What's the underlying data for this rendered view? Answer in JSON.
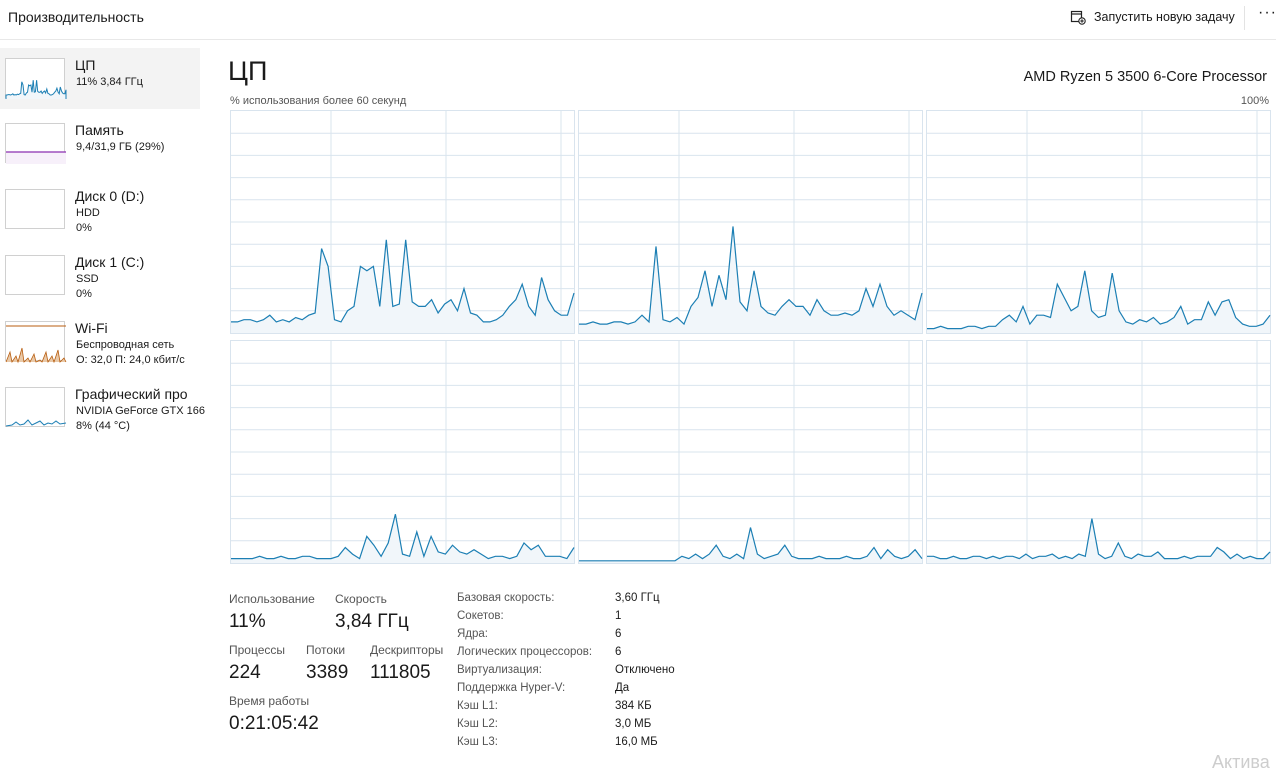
{
  "header": {
    "title": "Производительность",
    "run_task_label": "Запустить новую задачу",
    "more_label": "···"
  },
  "sidebar": {
    "items": [
      {
        "name": "ЦП",
        "line1": "11% 3,84 ГГц",
        "line2": ""
      },
      {
        "name": "Память",
        "line1": "9,4/31,9 ГБ (29%)",
        "line2": ""
      },
      {
        "name": "Диск 0 (D:)",
        "line1": "HDD",
        "line2": "0%"
      },
      {
        "name": "Диск 1 (C:)",
        "line1": "SSD",
        "line2": "0%"
      },
      {
        "name": "Wi-Fi",
        "line1": "Беспроводная сеть",
        "line2": "О: 32,0 П: 24,0 кбит/с"
      },
      {
        "name": "Графический про",
        "line1": "NVIDIA GeForce GTX 166",
        "line2": "8% (44 °C)"
      }
    ]
  },
  "cpu": {
    "title": "ЦП",
    "model": "AMD Ryzen 5 3500 6-Core Processor",
    "graph_caption": "% использования более 60 секунд",
    "graph_max": "100%",
    "cores": [
      [
        5,
        5,
        6,
        6,
        5,
        6,
        8,
        5,
        6,
        5,
        7,
        6,
        8,
        9,
        38,
        30,
        6,
        5,
        10,
        12,
        30,
        28,
        30,
        12,
        42,
        12,
        13,
        42,
        14,
        12,
        12,
        15,
        9,
        13,
        15,
        10,
        20,
        9,
        8,
        5,
        5,
        6,
        8,
        12,
        15,
        22,
        12,
        8,
        25,
        15,
        10,
        8,
        8,
        18
      ],
      [
        4,
        4,
        5,
        4,
        4,
        5,
        5,
        4,
        5,
        8,
        5,
        39,
        6,
        5,
        7,
        4,
        12,
        16,
        28,
        12,
        26,
        15,
        48,
        14,
        10,
        28,
        12,
        9,
        8,
        12,
        15,
        12,
        12,
        8,
        15,
        10,
        8,
        8,
        9,
        8,
        10,
        20,
        12,
        22,
        12,
        8,
        10,
        8,
        6,
        18
      ],
      [
        2,
        2,
        3,
        2,
        2,
        2,
        3,
        3,
        2,
        3,
        3,
        6,
        8,
        5,
        12,
        4,
        8,
        8,
        7,
        22,
        16,
        10,
        12,
        28,
        10,
        7,
        8,
        27,
        10,
        5,
        4,
        6,
        5,
        7,
        4,
        5,
        7,
        12,
        4,
        6,
        6,
        14,
        8,
        14,
        15,
        7,
        4,
        3,
        3,
        4,
        8
      ],
      [
        2,
        2,
        2,
        2,
        3,
        2,
        2,
        3,
        2,
        2,
        3,
        3,
        2,
        2,
        2,
        3,
        7,
        4,
        2,
        12,
        8,
        3,
        9,
        22,
        4,
        3,
        14,
        3,
        12,
        5,
        4,
        8,
        5,
        4,
        6,
        4,
        2,
        3,
        3,
        2,
        3,
        9,
        6,
        8,
        3,
        3,
        3,
        2,
        7
      ],
      [
        1,
        1,
        1,
        1,
        1,
        1,
        1,
        1,
        1,
        1,
        1,
        1,
        1,
        1,
        1,
        3,
        2,
        4,
        2,
        4,
        8,
        3,
        2,
        4,
        2,
        16,
        4,
        2,
        3,
        4,
        8,
        3,
        2,
        2,
        2,
        3,
        2,
        2,
        2,
        3,
        2,
        2,
        3,
        7,
        2,
        6,
        3,
        2,
        3,
        6,
        2
      ],
      [
        3,
        3,
        2,
        2,
        3,
        2,
        2,
        3,
        3,
        2,
        3,
        2,
        3,
        3,
        2,
        4,
        2,
        3,
        3,
        4,
        2,
        3,
        2,
        4,
        3,
        20,
        4,
        2,
        3,
        9,
        3,
        2,
        4,
        3,
        3,
        5,
        2,
        2,
        2,
        3,
        2,
        3,
        3,
        3,
        7,
        5,
        2,
        4,
        2,
        3,
        2,
        2,
        5
      ]
    ]
  },
  "stats": {
    "usage_label": "Использование",
    "usage_value": "11%",
    "speed_label": "Скорость",
    "speed_value": "3,84 ГГц",
    "processes_label": "Процессы",
    "processes_value": "224",
    "threads_label": "Потоки",
    "threads_value": "3389",
    "handles_label": "Дескрипторы",
    "handles_value": "111805",
    "uptime_label": "Время работы",
    "uptime_value": "0:21:05:42"
  },
  "props": [
    {
      "label": "Базовая скорость:",
      "value": "3,60 ГГц"
    },
    {
      "label": "Сокетов:",
      "value": "1"
    },
    {
      "label": "Ядра:",
      "value": "6"
    },
    {
      "label": "Логических процессоров:",
      "value": "6"
    },
    {
      "label": "Виртуализация:",
      "value": "Отключено"
    },
    {
      "label": "Поддержка Hyper-V:",
      "value": "Да"
    },
    {
      "label": "Кэш L1:",
      "value": "384 КБ"
    },
    {
      "label": "Кэш L2:",
      "value": "3,0 МБ"
    },
    {
      "label": "Кэш L3:",
      "value": "16,0 МБ"
    }
  ],
  "watermark": "Актива",
  "colors": {
    "cpu_line": "#1c7fb4",
    "cpu_fill": "#f1f6fa",
    "memory_line": "#8b2fb0",
    "wifi": "#b85d0f",
    "grid": "#d9e4ee"
  }
}
